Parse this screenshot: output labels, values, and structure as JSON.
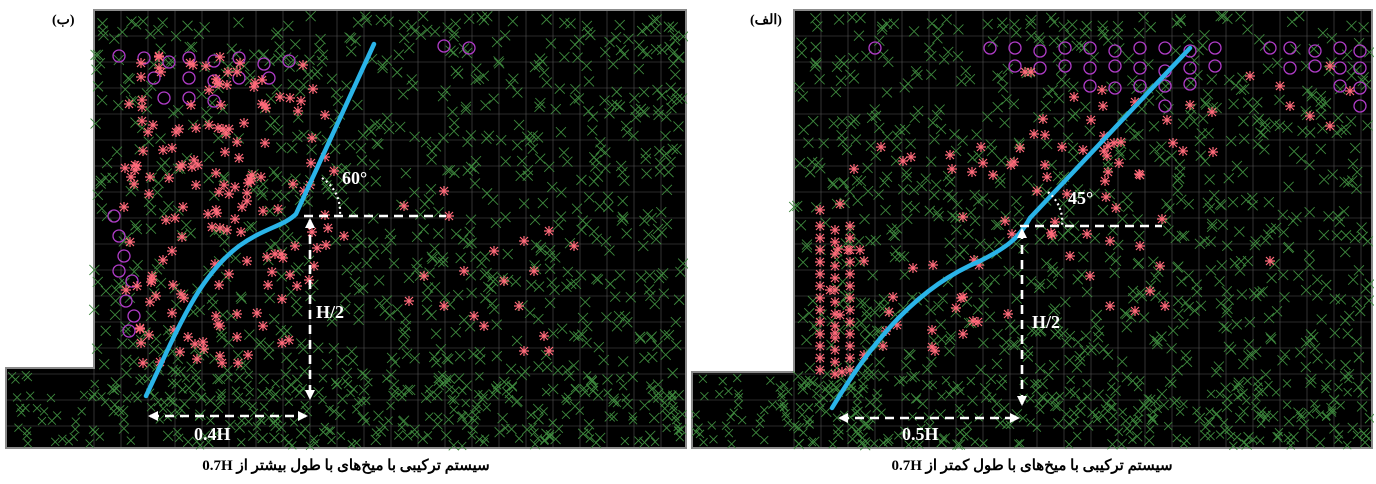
{
  "figure": {
    "panels": [
      {
        "id": "left",
        "label": "(ب)",
        "caption": "سیستم ترکیبی با میخ‌های با طول بیشتر از 0.7H",
        "angle_label": "60°",
        "height_label": "H/2",
        "width_label": "0.4H"
      },
      {
        "id": "right",
        "label": "(الف)",
        "caption": "سیستم ترکیبی با میخ‌های با طول کمتر از 0.7H",
        "angle_label": "45°",
        "height_label": "H/2",
        "width_label": "0.5H"
      }
    ]
  },
  "colors": {
    "background": "#000000",
    "mesh": "#3e8a3e",
    "slip_line": "#2ab4e8",
    "yield_points": "#ff6a7a",
    "tension_points": "#b03cc8",
    "dimension_lines": "#ffffff",
    "border": "#8a8a8a"
  }
}
